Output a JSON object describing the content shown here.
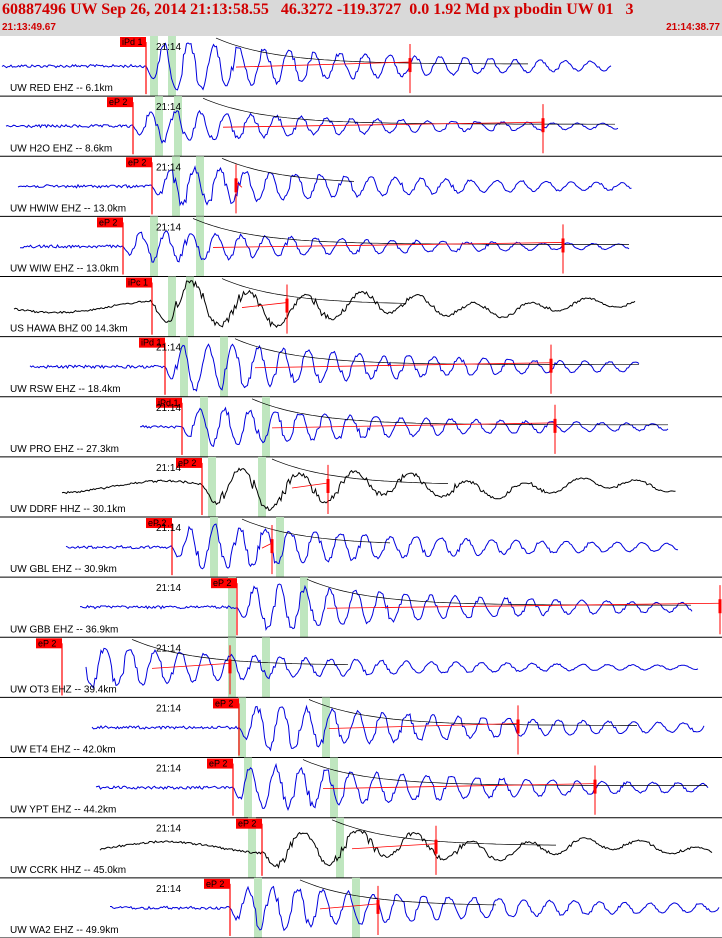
{
  "header": {
    "title": "60887496 UW Sep 26, 2014 21:13:58.55   46.3272 -119.3727  0.0 1.92 Md px pbodin UW 01   3",
    "start_time": "21:13:49.67",
    "end_time": "21:14:38.77"
  },
  "colors": {
    "header_bg": "#d9d9d9",
    "header_text": "#d10000",
    "trace_blue": "#0000dd",
    "trace_black": "#000000",
    "pick_red": "#ff0000",
    "window_green": "#bfe6bf",
    "divider": "#000000"
  },
  "traces": [
    {
      "label": "UW RED EHZ -- 6.1km",
      "time": "21:14",
      "pick": "iPd 1",
      "color": "blue"
    },
    {
      "label": "UW H2O EHZ -- 8.6km",
      "time": "21:14",
      "pick": "eP 2",
      "color": "blue"
    },
    {
      "label": "UW HWIW EHZ -- 13.0km",
      "time": "21:14",
      "pick": "eP 2",
      "color": "blue"
    },
    {
      "label": "UW WIW EHZ -- 13.0km",
      "time": "21:14",
      "pick": "eP 2",
      "color": "blue"
    },
    {
      "label": "US HAWA BHZ 00 14.3km",
      "time": "",
      "pick": "iPc 1",
      "color": "black"
    },
    {
      "label": "UW RSW EHZ -- 18.4km",
      "time": "21:14",
      "pick": "iPd 1",
      "color": "blue"
    },
    {
      "label": "UW PRO EHZ -- 27.3km",
      "time": "21:14",
      "pick": "iPd 1",
      "color": "blue"
    },
    {
      "label": "UW DDRF HHZ -- 30.1km",
      "time": "21:14",
      "pick": "eP 2",
      "color": "black"
    },
    {
      "label": "UW GBL EHZ -- 30.9km",
      "time": "21:14",
      "pick": "eP 2",
      "color": "blue"
    },
    {
      "label": "UW GBB EHZ -- 36.9km",
      "time": "21:14",
      "pick": "eP 2",
      "color": "blue"
    },
    {
      "label": "UW OT3 EHZ -- 39.4km",
      "time": "21:14",
      "pick": "eP 2",
      "color": "blue"
    },
    {
      "label": "UW ET4 EHZ -- 42.0km",
      "time": "21:14",
      "pick": "eP 2",
      "color": "blue"
    },
    {
      "label": "UW YPT EHZ -- 44.2km",
      "time": "21:14",
      "pick": "eP 2",
      "color": "blue"
    },
    {
      "label": "UW CCRK HHZ -- 45.0km",
      "time": "21:14",
      "pick": "eP 2",
      "color": "black"
    },
    {
      "label": "UW WA2 EHZ -- 49.9km",
      "time": "21:14",
      "pick": "eP 2",
      "color": "blue"
    }
  ]
}
